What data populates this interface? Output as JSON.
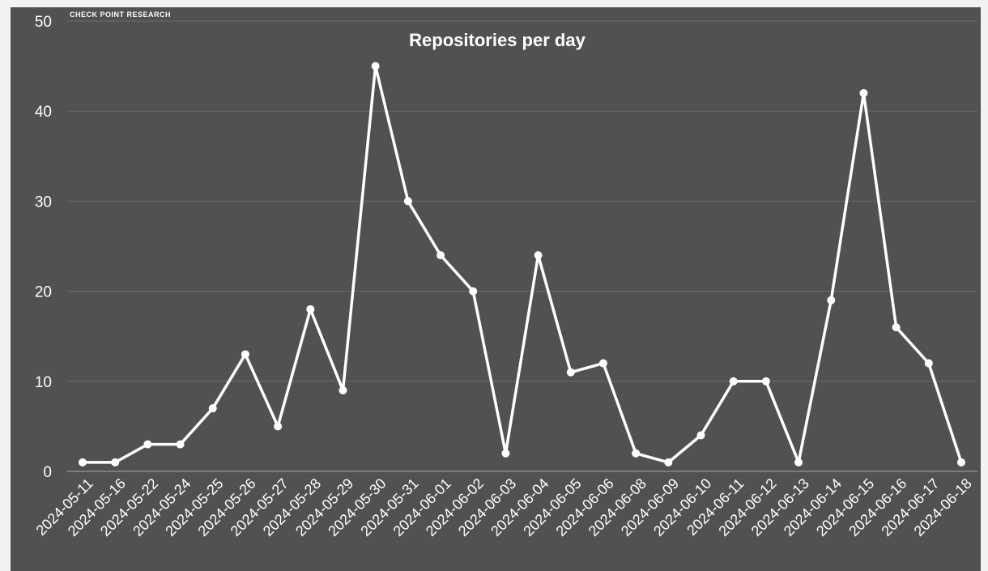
{
  "brand": "CHECK POINT RESEARCH",
  "colors": {
    "background": "#515151",
    "outer": "#f2f2f2",
    "line": "#ffffff",
    "grid": "#6a6a6a",
    "text": "#ffffff"
  },
  "chart_data": {
    "type": "line",
    "title": "Repositories per day",
    "xlabel": "",
    "ylabel": "",
    "ylim": [
      0,
      50
    ],
    "yticks": [
      0,
      10,
      20,
      30,
      40,
      50
    ],
    "grid": true,
    "legend": "none",
    "categories": [
      "2024-05-11",
      "2024-05-16",
      "2024-05-22",
      "2024-05-24",
      "2024-05-25",
      "2024-05-26",
      "2024-05-27",
      "2024-05-28",
      "2024-05-29",
      "2024-05-30",
      "2024-05-31",
      "2024-06-01",
      "2024-06-02",
      "2024-06-03",
      "2024-06-04",
      "2024-06-05",
      "2024-06-06",
      "2024-06-08",
      "2024-06-09",
      "2024-06-10",
      "2024-06-11",
      "2024-06-12",
      "2024-06-13",
      "2024-06-14",
      "2024-06-15",
      "2024-06-16",
      "2024-06-17",
      "2024-06-18"
    ],
    "values": [
      1,
      1,
      3,
      3,
      7,
      13,
      5,
      18,
      9,
      45,
      30,
      24,
      20,
      2,
      24,
      11,
      12,
      2,
      1,
      4,
      10,
      10,
      1,
      19,
      42,
      16,
      12,
      1
    ]
  }
}
